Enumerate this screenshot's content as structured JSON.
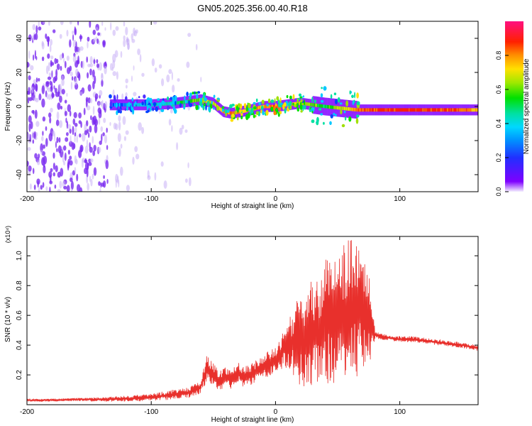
{
  "title": "GN05.2025.356.00.40.R18",
  "colors": {
    "line": "#e8302c",
    "violet": "#7b2cf0",
    "light_violet": "#c9b0f5",
    "colorbar": [
      "#7f00ff",
      "#5030ff",
      "#0040ff",
      "#00c8ff",
      "#00e0a0",
      "#00e000",
      "#a0e000",
      "#ffe000",
      "#ff8000",
      "#ff2000",
      "#ff1060"
    ]
  },
  "chart_data": [
    {
      "type": "heatmap",
      "xlabel": "Height of straight line (km)",
      "ylabel": "Frequency (Hz)",
      "xlim": [
        -200,
        163
      ],
      "ylim": [
        -50,
        50
      ],
      "x_ticks": [
        -200,
        -100,
        0,
        100
      ],
      "x_tick_labels": [
        "-200",
        "-100",
        "0",
        "100"
      ],
      "y_ticks": [
        -40,
        -20,
        0,
        20,
        40
      ],
      "y_tick_labels": [
        "-40",
        "-20",
        "0",
        "20",
        "40"
      ],
      "colorbar": {
        "label": "Normalized spectral amplitude",
        "range": [
          0,
          1
        ],
        "ticks": [
          0.0,
          0.2,
          0.4,
          0.6,
          0.8
        ],
        "tick_labels": [
          "0.0",
          "0.2",
          "0.4",
          "0.6",
          "0.8"
        ]
      },
      "ridge": {
        "x": [
          -133,
          -120,
          -100,
          -80,
          -60,
          -50,
          -42,
          -35,
          -20,
          -10,
          0,
          10,
          20,
          40,
          66,
          80,
          100,
          120,
          140,
          163
        ],
        "freq_hz": [
          1,
          1,
          1,
          2,
          4,
          2,
          -3,
          -4,
          -2,
          0,
          0,
          1,
          2,
          0,
          -2,
          -2,
          -2,
          -2,
          -2,
          -2
        ],
        "amplitude": [
          0.3,
          0.35,
          0.4,
          0.45,
          0.65,
          0.7,
          0.8,
          0.85,
          0.75,
          0.8,
          0.88,
          0.8,
          0.7,
          0.5,
          0.85,
          0.92,
          0.95,
          0.95,
          0.93,
          0.8
        ]
      },
      "noise_region_x": [
        -200,
        -60
      ]
    },
    {
      "type": "line",
      "xlabel": "Height of straight line (km)",
      "ylabel": "SNR (10 * v/v)",
      "y_scale_label": "(x10⁴)",
      "xlim": [
        -200,
        163
      ],
      "ylim": [
        0,
        11300
      ],
      "x_ticks": [
        -200,
        -100,
        0,
        100
      ],
      "x_tick_labels": [
        "-200",
        "-100",
        "0",
        "100"
      ],
      "y_ticks": [
        2000,
        4000,
        6000,
        8000,
        10000
      ],
      "y_tick_labels": [
        "0.2",
        "0.4",
        "0.6",
        "0.8",
        "1.0"
      ],
      "series": [
        {
          "x": [
            -200,
            -180,
            -160,
            -140,
            -120,
            -100,
            -80,
            -70,
            -60,
            -55,
            -50,
            -45,
            -40,
            -35,
            -30,
            -25,
            -20,
            -15,
            -10,
            -5,
            0,
            5,
            10,
            15,
            20,
            25,
            30,
            35,
            40,
            45,
            50,
            55,
            60,
            65,
            70,
            75,
            80,
            90,
            100,
            110,
            120,
            130,
            140,
            150,
            163
          ],
          "values": [
            300,
            300,
            350,
            350,
            400,
            500,
            700,
            800,
            1200,
            2500,
            2000,
            1600,
            1900,
            1700,
            2100,
            1900,
            2000,
            2300,
            2500,
            2800,
            2900,
            3600,
            4000,
            4200,
            4300,
            4600,
            4800,
            5000,
            5500,
            5800,
            6000,
            6100,
            6300,
            6500,
            6600,
            6000,
            4700,
            4500,
            4400,
            4400,
            4300,
            4200,
            4100,
            4000,
            3800
          ],
          "spread": [
            100,
            100,
            100,
            150,
            200,
            250,
            350,
            350,
            500,
            900,
            800,
            700,
            700,
            700,
            800,
            700,
            700,
            800,
            800,
            900,
            900,
            1200,
            1500,
            2500,
            3000,
            3500,
            3600,
            3800,
            4200,
            4500,
            4800,
            4800,
            4900,
            4700,
            4200,
            3500,
            250,
            200,
            200,
            200,
            200,
            200,
            200,
            200,
            200
          ]
        }
      ]
    }
  ]
}
